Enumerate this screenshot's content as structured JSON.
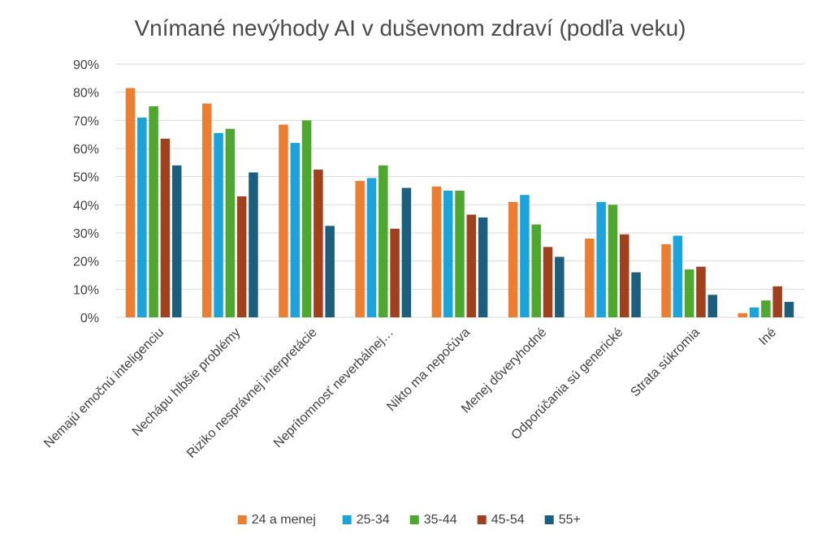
{
  "chart_data": {
    "type": "bar",
    "title": "Vnímané nevýhody AI v duševnom zdraví (podľa veku)",
    "xlabel": "",
    "ylabel": "",
    "ylim": [
      0,
      90
    ],
    "y_ticks": [
      "0%",
      "10%",
      "20%",
      "30%",
      "40%",
      "50%",
      "60%",
      "70%",
      "80%",
      "90%"
    ],
    "grid": true,
    "legend_position": "bottom",
    "categories": [
      "Nemajú emočnú inteligenciu",
      "Nechápu hlbšie problémy",
      "Riziko nesprávnej interpretácie",
      "Neprítomnosť neverbálnej…",
      "Nikto ma nepočúva",
      "Menej dôveryhodné",
      "Odporúčania sú generické",
      "Strata súkromia",
      "Iné"
    ],
    "series": [
      {
        "name": "24 a menej",
        "color": "#ED7D31",
        "values": [
          81.5,
          76,
          68.5,
          48.5,
          46.5,
          41,
          28,
          26,
          1.5
        ]
      },
      {
        "name": "25-34",
        "color": "#1AA3DD",
        "values": [
          71,
          65.5,
          62,
          49.5,
          45,
          43.5,
          41,
          29,
          3.5
        ]
      },
      {
        "name": "35-44",
        "color": "#4EA72E",
        "values": [
          75,
          67,
          70,
          54,
          45,
          33,
          40,
          17,
          6
        ]
      },
      {
        "name": "45-54",
        "color": "#A0401C",
        "values": [
          63.5,
          43,
          52.5,
          31.5,
          36.5,
          25,
          29.5,
          18,
          11
        ]
      },
      {
        "name": "55+",
        "color": "#1C5E7E",
        "values": [
          54,
          51.5,
          32.5,
          46,
          35.5,
          21.5,
          16,
          8,
          5.5
        ]
      }
    ]
  }
}
